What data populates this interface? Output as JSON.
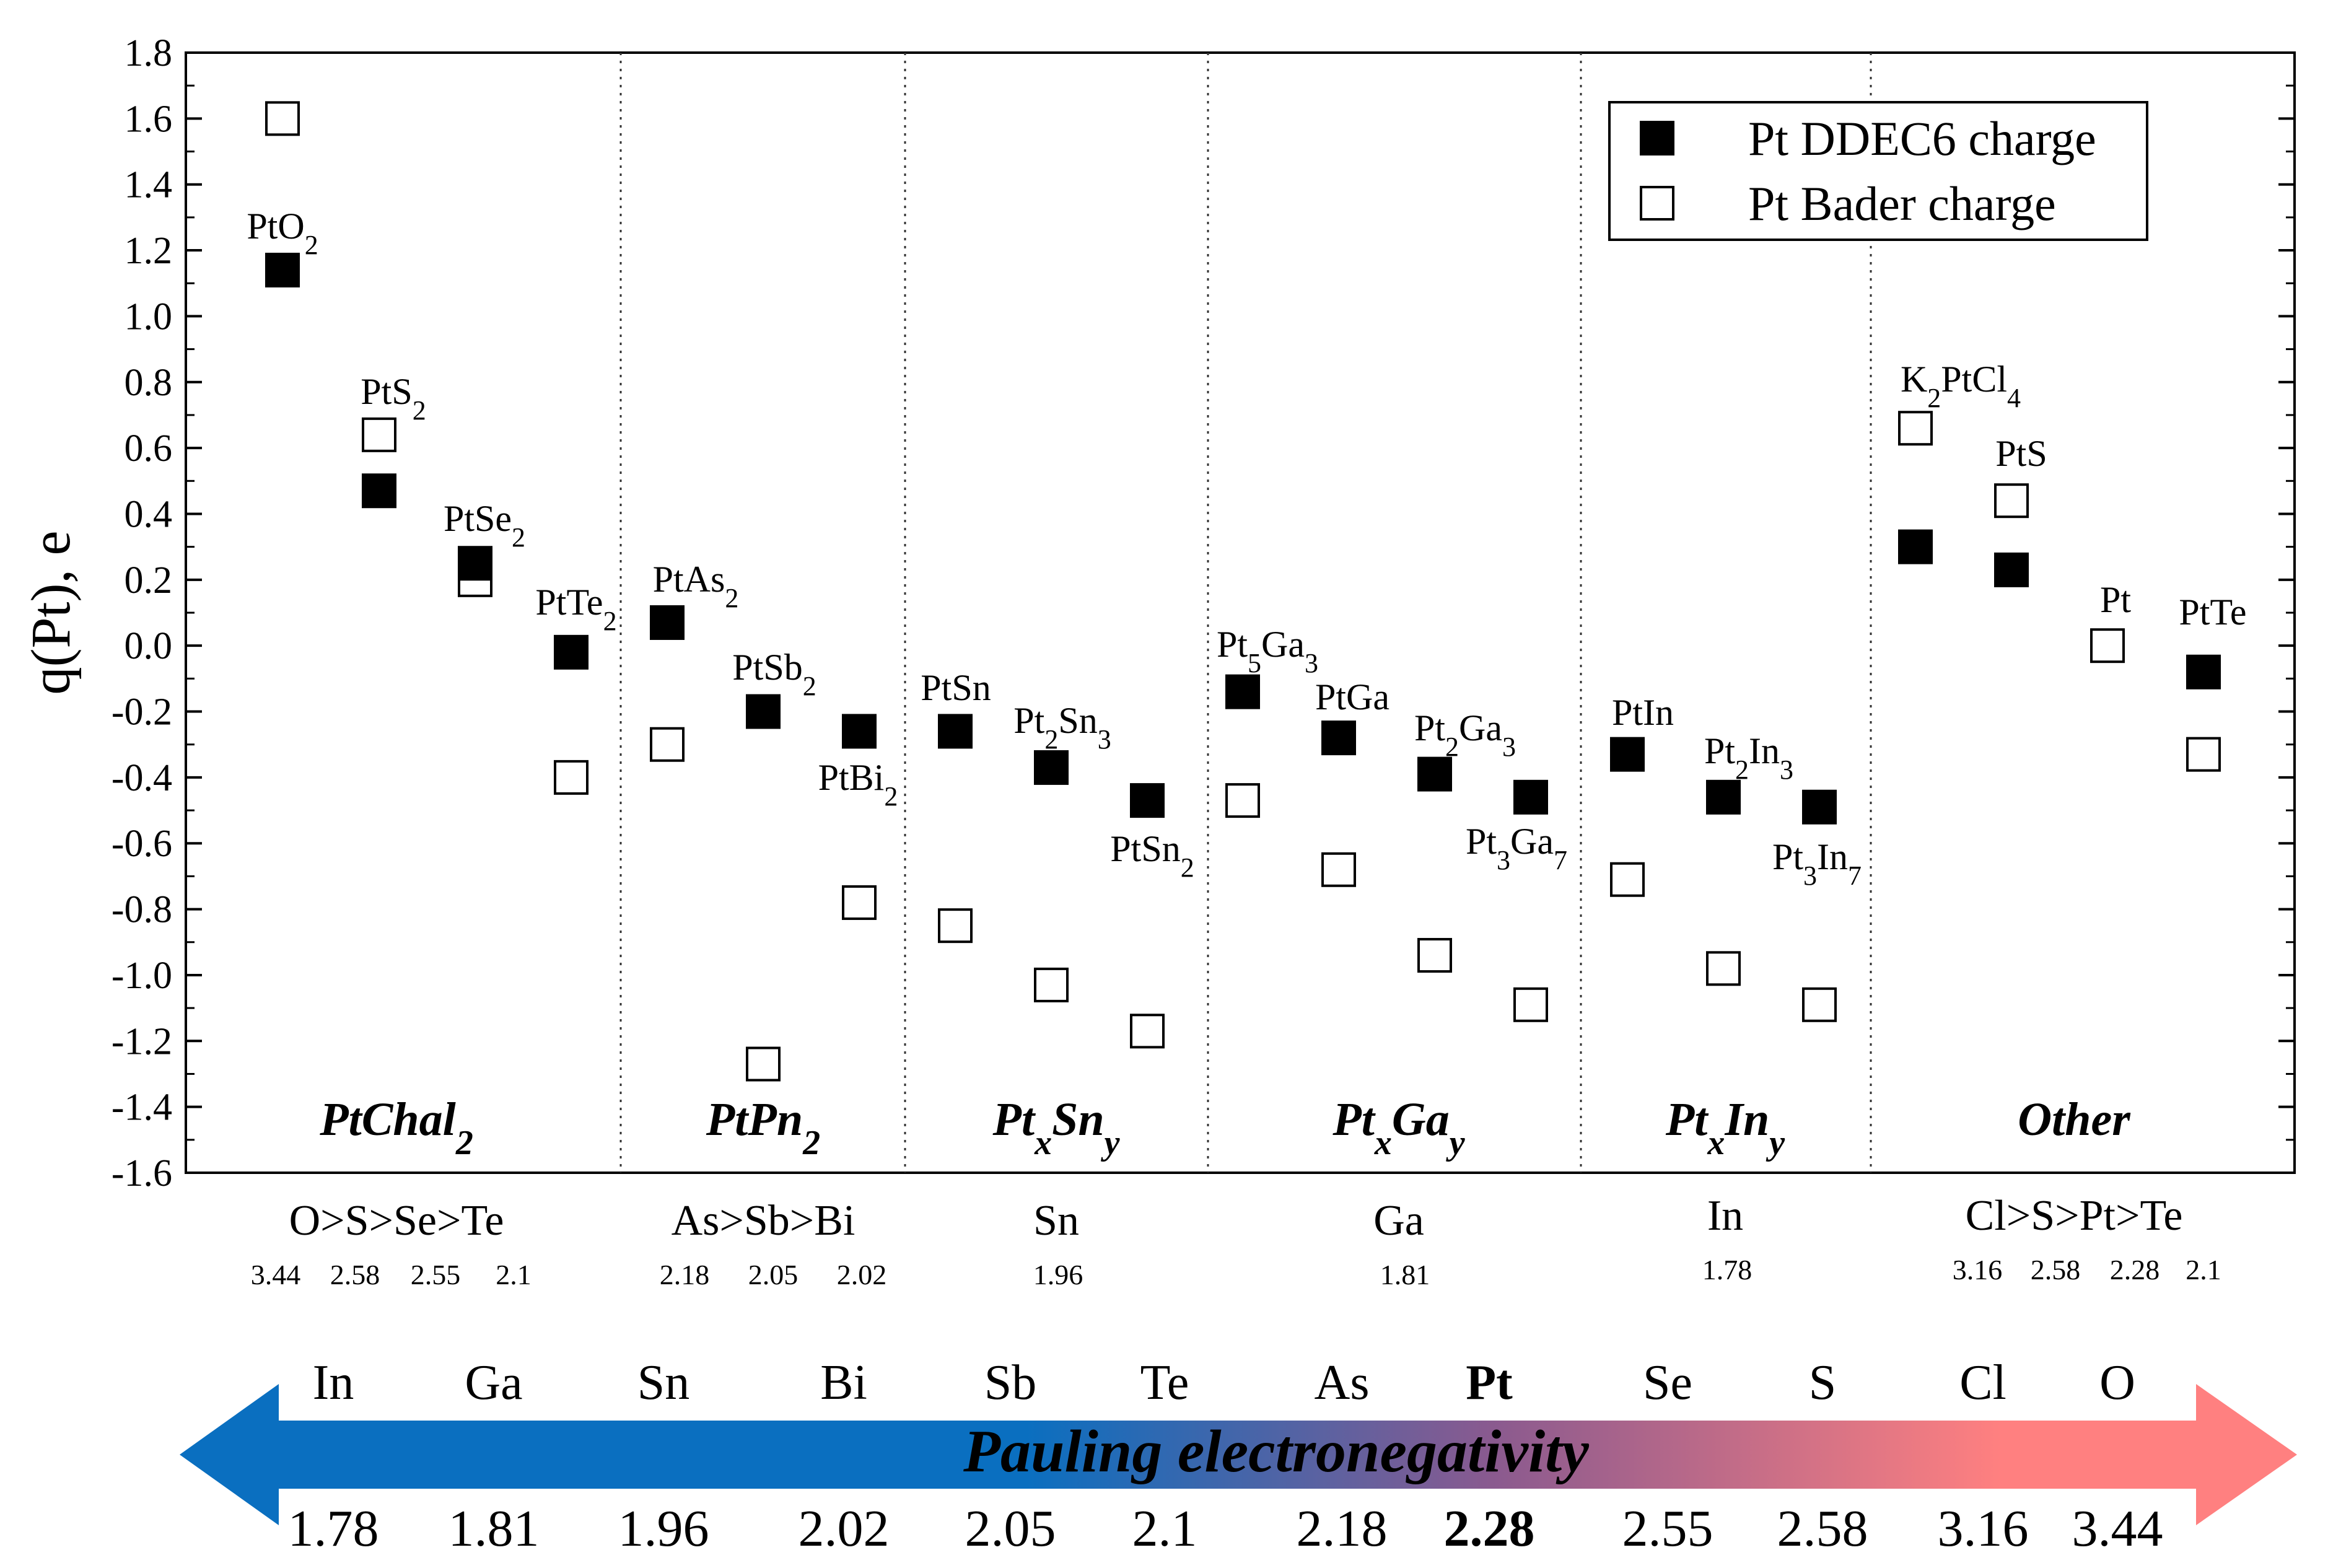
{
  "chart_data": {
    "type": "scatter",
    "ylabel": "q(Pt), e",
    "ylim": [
      -1.6,
      1.8
    ],
    "yticks": [
      "-1.6",
      "-1.4",
      "-1.2",
      "-1.0",
      "-0.8",
      "-0.6",
      "-0.4",
      "-0.2",
      "0.0",
      "0.2",
      "0.4",
      "0.6",
      "0.8",
      "1.0",
      "1.2",
      "1.4",
      "1.6",
      "1.8"
    ],
    "legend": {
      "position": "top-right",
      "entries": [
        {
          "name": "Pt DDEC6 charge",
          "marker": "filled-square"
        },
        {
          "name": "Pt Bader charge",
          "marker": "open-square"
        }
      ]
    },
    "groups": [
      {
        "name": "PtChal",
        "sub": "2",
        "elements": "O>S>Se>Te",
        "electronegativities": [
          "3.44",
          "2.58",
          "2.55",
          "2.1"
        ]
      },
      {
        "name": "PtPn",
        "sub": "2",
        "elements": "As>Sb>Bi",
        "electronegativities": [
          "2.18",
          "2.05",
          "2.02"
        ]
      },
      {
        "name": "PtxSny",
        "parts": [
          {
            "t": "Pt"
          },
          {
            "t": "x",
            "sub": true
          },
          {
            "t": "Sn"
          },
          {
            "t": "y",
            "sub": true
          }
        ],
        "elements": "Sn",
        "electronegativities": [
          "1.96"
        ]
      },
      {
        "name": "PtxGay",
        "parts": [
          {
            "t": "Pt"
          },
          {
            "t": "x",
            "sub": true
          },
          {
            "t": "Ga"
          },
          {
            "t": "y",
            "sub": true
          }
        ],
        "elements": "Ga",
        "electronegativities": [
          "1.81"
        ]
      },
      {
        "name": "PtxIny",
        "parts": [
          {
            "t": "Pt"
          },
          {
            "t": "x",
            "sub": true
          },
          {
            "t": "In"
          },
          {
            "t": "y",
            "sub": true
          }
        ],
        "elements": "In",
        "electronegativities": [
          "1.78"
        ]
      },
      {
        "name": "Other",
        "elements": "Cl>S>Pt>Te",
        "electronegativities": [
          "3.16",
          "2.58",
          "2.28",
          "2.1"
        ]
      }
    ],
    "compounds": [
      {
        "label": "PtO2",
        "parts": [
          {
            "t": "PtO"
          },
          {
            "t": "2",
            "sub": true
          }
        ],
        "ddec6": 1.14,
        "bader": 1.6
      },
      {
        "label": "PtS2",
        "parts": [
          {
            "t": "PtS"
          },
          {
            "t": "2",
            "sub": true
          }
        ],
        "ddec6": 0.47,
        "bader": 0.64
      },
      {
        "label": "PtSe2",
        "parts": [
          {
            "t": "PtSe"
          },
          {
            "t": "2",
            "sub": true
          }
        ],
        "ddec6": 0.25,
        "bader": 0.2
      },
      {
        "label": "PtTe2",
        "parts": [
          {
            "t": "PtTe"
          },
          {
            "t": "2",
            "sub": true
          }
        ],
        "ddec6": -0.02,
        "bader": -0.4
      },
      {
        "label": "PtAs2",
        "parts": [
          {
            "t": "PtAs"
          },
          {
            "t": "2",
            "sub": true
          }
        ],
        "ddec6": 0.07,
        "bader": -0.3
      },
      {
        "label": "PtSb2",
        "parts": [
          {
            "t": "PtSb"
          },
          {
            "t": "2",
            "sub": true
          }
        ],
        "ddec6": -0.2,
        "bader": -1.27
      },
      {
        "label": "PtBi2",
        "parts": [
          {
            "t": "PtBi"
          },
          {
            "t": "2",
            "sub": true
          }
        ],
        "ddec6": -0.26,
        "bader": -0.78
      },
      {
        "label": "PtSn",
        "parts": [
          {
            "t": "PtSn"
          }
        ],
        "ddec6": -0.26,
        "bader": -0.85
      },
      {
        "label": "Pt2Sn3",
        "parts": [
          {
            "t": "Pt"
          },
          {
            "t": "2",
            "sub": true
          },
          {
            "t": "Sn"
          },
          {
            "t": "3",
            "sub": true
          }
        ],
        "ddec6": -0.37,
        "bader": -1.03
      },
      {
        "label": "PtSn2",
        "parts": [
          {
            "t": "PtSn"
          },
          {
            "t": "2",
            "sub": true
          }
        ],
        "ddec6": -0.47,
        "bader": -1.17
      },
      {
        "label": "Pt5Ga3",
        "parts": [
          {
            "t": "Pt"
          },
          {
            "t": "5",
            "sub": true
          },
          {
            "t": "Ga"
          },
          {
            "t": "3",
            "sub": true
          }
        ],
        "ddec6": -0.14,
        "bader": -0.47
      },
      {
        "label": "PtGa",
        "parts": [
          {
            "t": "PtGa"
          }
        ],
        "ddec6": -0.28,
        "bader": -0.68
      },
      {
        "label": "Pt2Ga3",
        "parts": [
          {
            "t": "Pt"
          },
          {
            "t": "2",
            "sub": true
          },
          {
            "t": "Ga"
          },
          {
            "t": "3",
            "sub": true
          }
        ],
        "ddec6": -0.39,
        "bader": -0.94
      },
      {
        "label": "Pt3Ga7",
        "parts": [
          {
            "t": "Pt"
          },
          {
            "t": "3",
            "sub": true
          },
          {
            "t": "Ga"
          },
          {
            "t": "7",
            "sub": true
          }
        ],
        "ddec6": -0.46,
        "bader": -1.09
      },
      {
        "label": "PtIn",
        "parts": [
          {
            "t": "PtIn"
          }
        ],
        "ddec6": -0.33,
        "bader": -0.71
      },
      {
        "label": "Pt2In3",
        "parts": [
          {
            "t": "Pt"
          },
          {
            "t": "2",
            "sub": true
          },
          {
            "t": "In"
          },
          {
            "t": "3",
            "sub": true
          }
        ],
        "ddec6": -0.46,
        "bader": -0.98
      },
      {
        "label": "Pt3In7",
        "parts": [
          {
            "t": "Pt"
          },
          {
            "t": "3",
            "sub": true
          },
          {
            "t": "In"
          },
          {
            "t": "7",
            "sub": true
          }
        ],
        "ddec6": -0.49,
        "bader": -1.09
      },
      {
        "label": "K2PtCl4",
        "parts": [
          {
            "t": "K"
          },
          {
            "t": "2",
            "sub": true
          },
          {
            "t": "PtCl"
          },
          {
            "t": "4",
            "sub": true
          }
        ],
        "ddec6": 0.3,
        "bader": 0.66
      },
      {
        "label": "PtS",
        "parts": [
          {
            "t": "PtS"
          }
        ],
        "ddec6": 0.23,
        "bader": 0.44
      },
      {
        "label": "Pt",
        "parts": [
          {
            "t": "Pt"
          }
        ],
        "ddec6": null,
        "bader": 0.0
      },
      {
        "label": "PtTe",
        "parts": [
          {
            "t": "PtTe"
          }
        ],
        "ddec6": -0.08,
        "bader": -0.33
      }
    ],
    "electronegativity_scale": {
      "title": "Pauling electronegativity",
      "elements": [
        "In",
        "Ga",
        "Sn",
        "Bi",
        "Sb",
        "Te",
        "As",
        "Pt",
        "Se",
        "S",
        "Cl",
        "O"
      ],
      "values": [
        "1.78",
        "1.81",
        "1.96",
        "2.02",
        "2.05",
        "2.1",
        "2.18",
        "2.28",
        "2.55",
        "2.58",
        "3.16",
        "3.44"
      ],
      "highlight": "Pt",
      "colors": {
        "low": "#0a6fc0",
        "mid": "#8a5a8f",
        "high": "#ff8080"
      }
    }
  }
}
